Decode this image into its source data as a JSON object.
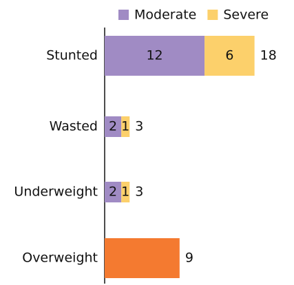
{
  "chart_data": {
    "type": "stacked-bar-horizontal",
    "categories": [
      "Stunted",
      "Wasted",
      "Underweight",
      "Overweight"
    ],
    "series": [
      {
        "name": "Moderate",
        "color": "#a08bc4",
        "values": [
          12,
          2,
          2,
          null
        ]
      },
      {
        "name": "Severe",
        "color": "#fcd06b",
        "values": [
          6,
          1,
          1,
          null
        ]
      },
      {
        "color": "#f47a30",
        "values": [
          null,
          null,
          null,
          9
        ]
      }
    ],
    "totals": [
      18,
      3,
      3,
      9
    ],
    "xlim": [
      0,
      22
    ]
  }
}
